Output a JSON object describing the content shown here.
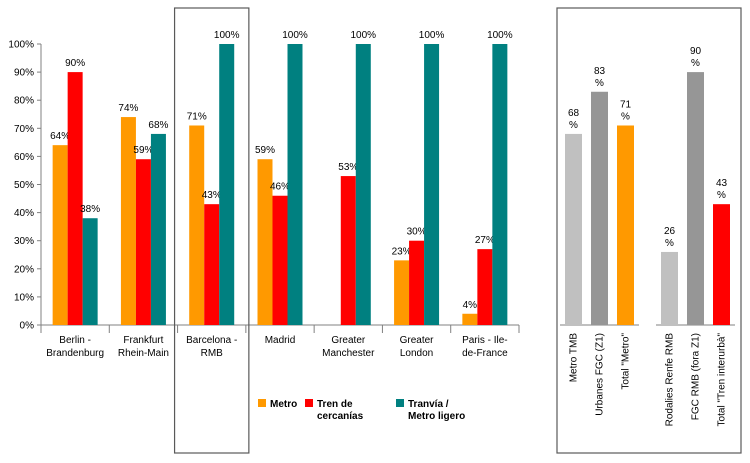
{
  "chart_data": [
    {
      "type": "bar",
      "categories": [
        [
          "Berlin -",
          "Brandenburg"
        ],
        [
          "Frankfurt",
          "Rhein-Main"
        ],
        [
          "Barcelona -",
          "RMB"
        ],
        [
          "Madrid"
        ],
        [
          "Greater",
          "Manchester"
        ],
        [
          "Greater",
          "London"
        ],
        [
          "Paris -  Ile-",
          "de-France"
        ]
      ],
      "series": [
        {
          "name": "Metro",
          "color": "#FF9900",
          "values": [
            64,
            74,
            71,
            59,
            null,
            23,
            4
          ]
        },
        {
          "name": "Tren de cercanías",
          "color": "#FF0000",
          "values": [
            90,
            59,
            43,
            46,
            53,
            30,
            27
          ]
        },
        {
          "name": "Tranvía / Metro ligero",
          "color": "#008080",
          "values": [
            38,
            68,
            100,
            100,
            100,
            100,
            100
          ]
        }
      ],
      "legend_lines": [
        [
          "Metro"
        ],
        [
          "Tren de",
          "cercanías"
        ],
        [
          "Tranvía /",
          "Metro ligero"
        ]
      ],
      "value_suffix": "%",
      "ylim": [
        0,
        100
      ],
      "yticks": [
        "0%",
        "10%",
        "20%",
        "30%",
        "40%",
        "50%",
        "60%",
        "70%",
        "80%",
        "90%",
        "100%"
      ],
      "highlighted_category": 2,
      "legend_position": "bottom"
    },
    {
      "type": "bar",
      "ylim": [
        0,
        100
      ],
      "groups": [
        {
          "bars": [
            {
              "label": "Metro TMB",
              "value": 68,
              "color": "#C0C0C0"
            },
            {
              "label": "Urbanes FGC (Z1)",
              "value": 83,
              "color": "#969696"
            },
            {
              "label": "Total \"Metro\"",
              "value": 71,
              "color": "#FF9900"
            }
          ]
        },
        {
          "bars": [
            {
              "label": "Rodalies Renfe RMB",
              "value": 26,
              "color": "#C0C0C0"
            },
            {
              "label": "FGC RMB (fora Z1)",
              "value": 90,
              "color": "#969696"
            },
            {
              "label": "Total \"Tren interurbà\"",
              "value": 43,
              "color": "#FF0000"
            }
          ]
        }
      ]
    }
  ]
}
